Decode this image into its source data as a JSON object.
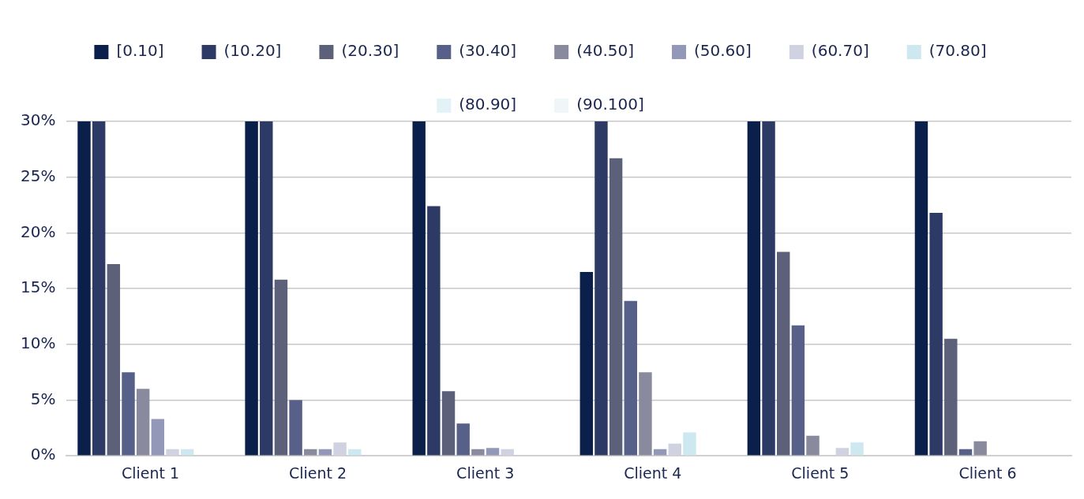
{
  "chart_data": {
    "type": "bar",
    "categories": [
      "Client 1",
      "Client 2",
      "Client 3",
      "Client 4",
      "Client 5",
      "Client 6"
    ],
    "series": [
      {
        "name": "[0.10]",
        "color": "#0b1f4b",
        "values": [
          30,
          30,
          30,
          16.5,
          30,
          30
        ]
      },
      {
        "name": "(10.20]",
        "color": "#2e3a66",
        "values": [
          30,
          30,
          22.4,
          30,
          30,
          21.8
        ]
      },
      {
        "name": "(20.30]",
        "color": "#5c6079",
        "values": [
          17.2,
          15.8,
          5.8,
          26.7,
          18.3,
          10.5
        ]
      },
      {
        "name": "(30.40]",
        "color": "#566089",
        "values": [
          7.5,
          5.0,
          2.9,
          13.9,
          11.7,
          0.6
        ]
      },
      {
        "name": "(40.50]",
        "color": "#898a9e",
        "values": [
          6.0,
          0.6,
          0.6,
          7.5,
          1.8,
          1.3
        ]
      },
      {
        "name": "(50.60]",
        "color": "#9498b8",
        "values": [
          3.3,
          0.6,
          0.7,
          0.6,
          0,
          0
        ]
      },
      {
        "name": "(60.70]",
        "color": "#d0d2e2",
        "values": [
          0.6,
          1.2,
          0.6,
          1.1,
          0.7,
          0
        ]
      },
      {
        "name": "(70.80]",
        "color": "#cde8f0",
        "values": [
          0.6,
          0.6,
          0,
          2.1,
          1.2,
          0
        ]
      },
      {
        "name": "(80.90]",
        "color": "#e2f2f6",
        "values": [
          0,
          0,
          0,
          0,
          0,
          0
        ]
      },
      {
        "name": "(90.100]",
        "color": "#eef6f8",
        "values": [
          0,
          0,
          0,
          0,
          0,
          0
        ]
      }
    ],
    "ylim": [
      0,
      30
    ],
    "yticks": [
      {
        "value": 0,
        "label": "0%"
      },
      {
        "value": 5,
        "label": "5%"
      },
      {
        "value": 10,
        "label": "10%"
      },
      {
        "value": 15,
        "label": "15%"
      },
      {
        "value": 20,
        "label": "20%"
      },
      {
        "value": 25,
        "label": "25%"
      },
      {
        "value": 30,
        "label": "30%"
      }
    ],
    "grid": "y",
    "legend": "top"
  }
}
